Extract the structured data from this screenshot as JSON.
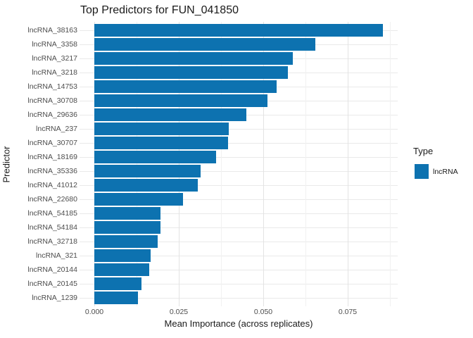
{
  "title": "Top Predictors for FUN_041850",
  "axes": {
    "x_title": "Mean Importance (across replicates)",
    "y_title": "Predictor",
    "x_tick_labels": [
      "0.000",
      "0.025",
      "0.050",
      "0.075"
    ]
  },
  "legend": {
    "title": "Type",
    "items": [
      {
        "label": "lncRNA",
        "color": "#0d72b0"
      }
    ]
  },
  "colors": {
    "bar": "#0d72b0",
    "grid_major": "#e3e3e3",
    "grid_minor": "#f1f1f1",
    "axis_text": "#4d4d4d",
    "text": "#1a1a1a",
    "background": "#ffffff"
  },
  "chart_data": {
    "type": "bar",
    "orientation": "horizontal",
    "title": "Top Predictors for FUN_041850",
    "xlabel": "Mean Importance (across replicates)",
    "ylabel": "Predictor",
    "series_name": "lncRNA",
    "categories": [
      "lncRNA_38163",
      "lncRNA_3358",
      "lncRNA_3217",
      "lncRNA_3218",
      "lncRNA_14753",
      "lncRNA_30708",
      "lncRNA_29636",
      "lncRNA_237",
      "lncRNA_30707",
      "lncRNA_18169",
      "lncRNA_35336",
      "lncRNA_41012",
      "lncRNA_22680",
      "lncRNA_54185",
      "lncRNA_54184",
      "lncRNA_32718",
      "lncRNA_321",
      "lncRNA_20144",
      "lncRNA_20145",
      "lncRNA_1239"
    ],
    "values": [
      0.0855,
      0.0654,
      0.0587,
      0.0572,
      0.054,
      0.0513,
      0.045,
      0.0397,
      0.0395,
      0.036,
      0.0314,
      0.0307,
      0.0262,
      0.0196,
      0.0195,
      0.0187,
      0.0166,
      0.0162,
      0.014,
      0.013
    ],
    "xlim": [
      0,
      0.09
    ],
    "x_major_ticks": [
      0,
      0.025,
      0.05,
      0.075
    ],
    "x_minor_ticks": [
      0.0125,
      0.0375,
      0.0625,
      0.0875
    ],
    "grid": true,
    "legend_position": "right"
  }
}
